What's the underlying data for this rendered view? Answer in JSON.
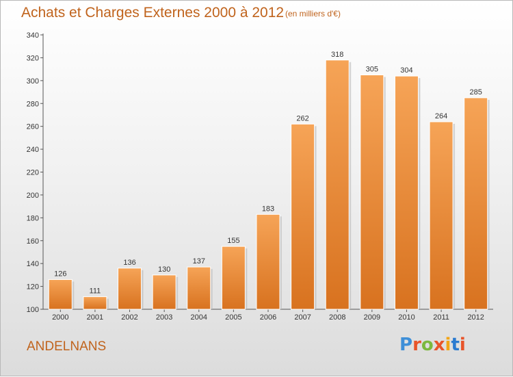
{
  "header": {
    "title": "Achats et Charges Externes 2000 à 2012",
    "unit": "(en milliers d'€)"
  },
  "footer": {
    "town": "ANDELNANS",
    "logo_text": "Proxiti"
  },
  "colors": {
    "bar_light": "#f6a457",
    "bar_dark": "#d8721f",
    "title": "#c0631c",
    "logo": [
      "#3e8fd8",
      "#e8542a",
      "#7cb83e",
      "#e8542a",
      "#f2a516",
      "#2b7bd0",
      "#e8542a"
    ]
  },
  "chart_data": {
    "type": "bar",
    "title": "Achats et Charges Externes 2000 à 2012",
    "xlabel": "",
    "ylabel": "",
    "categories": [
      "2000",
      "2001",
      "2002",
      "2003",
      "2004",
      "2005",
      "2006",
      "2007",
      "2008",
      "2009",
      "2010",
      "2011",
      "2012"
    ],
    "values": [
      126,
      111,
      136,
      130,
      137,
      155,
      183,
      262,
      318,
      305,
      304,
      264,
      285
    ],
    "ylim": [
      100,
      340
    ],
    "yticks": [
      100,
      120,
      140,
      160,
      180,
      200,
      220,
      240,
      260,
      280,
      300,
      320,
      340
    ],
    "grid": false,
    "legend": "none"
  }
}
